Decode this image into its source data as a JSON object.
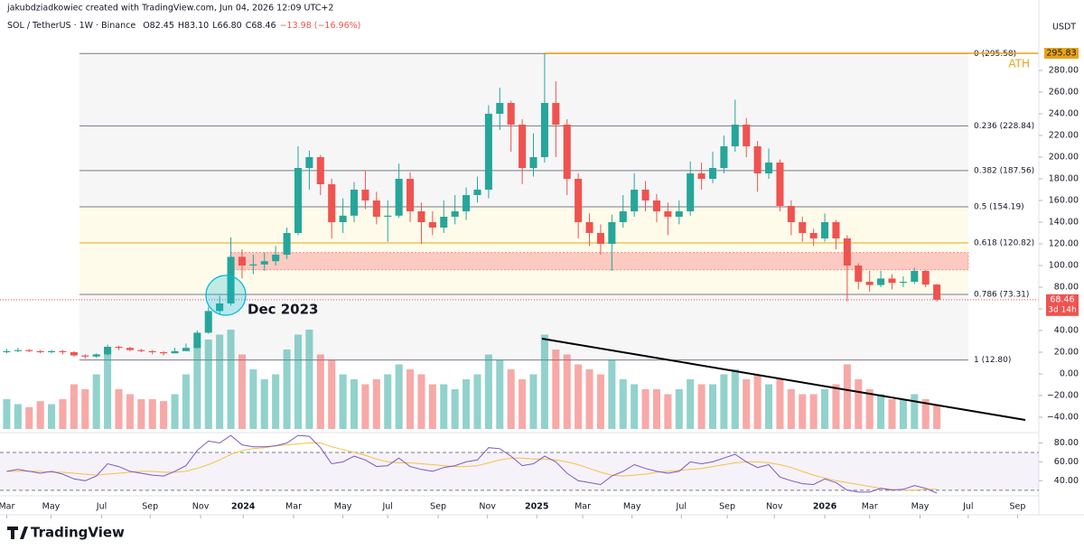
{
  "chart_data": {
    "type": "candlestick",
    "credit": "jakubdziadkowiec created with TradingView.com, Jun 04, 2026 12:09 UTC+2",
    "symbol": "SOL / TetherUS · 1W · Binance",
    "ohlc": [
      "O82.45",
      "H83.10",
      "L66.80",
      "C68.46",
      "−13.98 (−16.96%)"
    ],
    "y_axis_label": "USDT",
    "annotation": "Dec 2023",
    "ath_label": "ATH",
    "countdown": "3d 14h",
    "brand": "TradingView",
    "up_color": "#26a69a",
    "down_color": "#ef5350",
    "open": [
      20,
      21,
      22,
      21,
      20,
      21,
      20,
      17,
      16,
      18,
      25,
      24,
      22,
      21,
      20,
      19,
      21,
      24,
      38,
      58,
      65,
      108,
      100,
      101,
      104,
      110,
      130,
      190,
      200,
      175,
      140,
      146,
      170,
      160,
      145,
      146,
      180,
      150,
      140,
      135,
      145,
      150,
      165,
      170,
      240,
      250,
      230,
      190,
      200,
      250,
      230,
      180,
      140,
      130,
      120,
      140,
      150,
      170,
      160,
      150,
      145,
      150,
      185,
      180,
      190,
      210,
      230,
      210,
      185,
      195,
      155,
      140,
      130,
      125,
      140,
      125,
      100,
      85,
      82,
      88,
      84,
      85,
      95,
      82.45
    ],
    "close": [
      21,
      22,
      21,
      20,
      21,
      20,
      17,
      16,
      18,
      25,
      24,
      22,
      21,
      20,
      19,
      21,
      24,
      38,
      58,
      65,
      108,
      100,
      101,
      104,
      110,
      130,
      190,
      200,
      175,
      140,
      146,
      170,
      160,
      145,
      146,
      180,
      150,
      140,
      135,
      145,
      150,
      165,
      170,
      240,
      250,
      230,
      190,
      200,
      250,
      230,
      180,
      140,
      130,
      120,
      140,
      150,
      170,
      160,
      150,
      145,
      150,
      185,
      180,
      190,
      210,
      230,
      210,
      185,
      195,
      155,
      140,
      130,
      125,
      140,
      125,
      100,
      85,
      82,
      88,
      84,
      85,
      95,
      82.45,
      68.46
    ],
    "high": [
      23,
      24,
      23,
      22,
      22,
      22,
      21,
      18,
      19,
      27,
      26,
      25,
      23,
      22,
      21,
      24,
      28,
      40,
      62,
      72,
      126,
      115,
      110,
      112,
      118,
      135,
      210,
      206,
      202,
      180,
      162,
      177,
      188,
      168,
      160,
      194,
      186,
      158,
      150,
      160,
      165,
      172,
      182,
      248,
      264,
      252,
      235,
      222,
      295.83,
      270,
      235,
      185,
      148,
      138,
      147,
      165,
      185,
      178,
      166,
      158,
      160,
      196,
      195,
      205,
      220,
      253,
      236,
      215,
      208,
      198,
      160,
      145,
      134,
      148,
      142,
      128,
      102,
      95,
      95,
      92,
      90,
      98,
      96,
      83.1
    ],
    "low": [
      19,
      20,
      20,
      19,
      19,
      18,
      16,
      14,
      15,
      17,
      22,
      21,
      20,
      18,
      17,
      19,
      21,
      23,
      37,
      55,
      63,
      88,
      92,
      95,
      100,
      106,
      128,
      170,
      165,
      125,
      130,
      140,
      152,
      138,
      122,
      144,
      140,
      120,
      128,
      130,
      138,
      142,
      158,
      162,
      225,
      205,
      175,
      182,
      195,
      200,
      165,
      125,
      118,
      110,
      95,
      135,
      145,
      150,
      140,
      128,
      138,
      146,
      170,
      176,
      185,
      205,
      200,
      168,
      180,
      150,
      128,
      122,
      118,
      122,
      115,
      67,
      78,
      76,
      80,
      78,
      80,
      83,
      80,
      66.8
    ],
    "volume": [
      30,
      25,
      22,
      28,
      25,
      30,
      45,
      40,
      55,
      80,
      40,
      35,
      30,
      30,
      28,
      35,
      55,
      85,
      90,
      95,
      100,
      75,
      60,
      50,
      55,
      80,
      95,
      100,
      75,
      70,
      55,
      50,
      45,
      50,
      55,
      65,
      60,
      55,
      45,
      45,
      40,
      50,
      55,
      75,
      70,
      60,
      50,
      55,
      95,
      80,
      75,
      65,
      60,
      55,
      70,
      50,
      45,
      40,
      40,
      35,
      40,
      50,
      45,
      45,
      55,
      60,
      50,
      55,
      45,
      50,
      40,
      35,
      35,
      40,
      45,
      65,
      50,
      40,
      35,
      30,
      30,
      35,
      30,
      25
    ],
    "rsi": [
      50,
      52,
      50,
      48,
      50,
      47,
      42,
      40,
      45,
      58,
      55,
      50,
      48,
      46,
      45,
      50,
      56,
      72,
      82,
      80,
      88,
      78,
      76,
      76,
      77,
      80,
      88,
      87,
      75,
      58,
      60,
      66,
      62,
      55,
      56,
      64,
      55,
      52,
      50,
      54,
      56,
      60,
      62,
      75,
      74,
      66,
      56,
      58,
      66,
      60,
      48,
      40,
      38,
      36,
      45,
      50,
      57,
      53,
      50,
      48,
      50,
      60,
      58,
      60,
      64,
      68,
      60,
      54,
      57,
      44,
      40,
      37,
      36,
      42,
      38,
      30,
      28,
      28,
      32,
      30,
      31,
      35,
      32,
      27
    ],
    "rsi_ma": [
      50,
      50,
      50,
      50,
      49,
      49,
      48,
      47,
      46,
      47,
      48,
      49,
      50,
      50,
      49,
      49,
      50,
      53,
      57,
      62,
      68,
      72,
      74,
      75,
      77,
      78,
      79,
      80,
      80,
      76,
      73,
      70,
      67,
      63,
      60,
      59,
      59,
      58,
      57,
      56,
      55,
      55,
      56,
      59,
      62,
      64,
      64,
      63,
      63,
      62,
      60,
      57,
      53,
      49,
      46,
      45,
      46,
      47,
      49,
      50,
      51,
      52,
      53,
      55,
      57,
      59,
      60,
      60,
      59,
      57,
      54,
      50,
      46,
      43,
      40,
      38,
      36,
      34,
      32,
      31,
      30,
      30,
      31,
      31
    ],
    "rsi_color": "#7e57c2",
    "rsi_ma_color": "#f5c242",
    "rsi_ylim": [
      26,
      90
    ],
    "rsi_bands": [
      70,
      30
    ],
    "rsi_yticks": [
      {
        "value": 40,
        "label": "40.00"
      },
      {
        "value": 60,
        "label": "60.00"
      },
      {
        "value": 80,
        "label": "80.00"
      }
    ],
    "xlim": [
      -0.6,
      92.1
    ],
    "xticks": [
      {
        "value": 0,
        "label": "Mar"
      },
      {
        "value": 3.95,
        "label": "May"
      },
      {
        "value": 8.47,
        "label": "Jul"
      },
      {
        "value": 12.8,
        "label": "Sep"
      },
      {
        "value": 17.3,
        "label": "Nov"
      },
      {
        "value": 21.1,
        "label": "2024"
      },
      {
        "value": 25.6,
        "label": "Mar"
      },
      {
        "value": 30,
        "label": "May"
      },
      {
        "value": 34,
        "label": "Jul"
      },
      {
        "value": 38.5,
        "label": "Sep"
      },
      {
        "value": 42.9,
        "label": "Nov"
      },
      {
        "value": 47.3,
        "label": "2025"
      },
      {
        "value": 51.4,
        "label": "Mar"
      },
      {
        "value": 55.8,
        "label": "May"
      },
      {
        "value": 60.2,
        "label": "Jul"
      },
      {
        "value": 64.3,
        "label": "Sep"
      },
      {
        "value": 68.5,
        "label": "Nov"
      },
      {
        "value": 73,
        "label": "2026"
      },
      {
        "value": 77,
        "label": "Mar"
      },
      {
        "value": 81.5,
        "label": "May"
      },
      {
        "value": 85.8,
        "label": "Jul"
      },
      {
        "value": 90.2,
        "label": "Sep"
      }
    ],
    "ylim": [
      -50,
      310
    ],
    "yticks": [
      {
        "value": -40,
        "label": "−40.00"
      },
      {
        "value": -20,
        "label": "−20.00"
      },
      {
        "value": 0,
        "label": "0.00"
      },
      {
        "value": 20,
        "label": "20.00"
      },
      {
        "value": 40,
        "label": "40.00"
      },
      {
        "value": 60,
        "label": "60.00"
      },
      {
        "value": 80,
        "label": "80.00"
      },
      {
        "value": 100,
        "label": "100.00"
      },
      {
        "value": 120,
        "label": "120.00"
      },
      {
        "value": 140,
        "label": "140.00"
      },
      {
        "value": 160,
        "label": "160.00"
      },
      {
        "value": 180,
        "label": "180.00"
      },
      {
        "value": 200,
        "label": "200.00"
      },
      {
        "value": 220,
        "label": "220.00"
      },
      {
        "value": 240,
        "label": "240.00"
      },
      {
        "value": 260,
        "label": "260.00"
      },
      {
        "value": 280,
        "label": "280.00"
      }
    ],
    "fib_levels": [
      {
        "label": "0 (295.58)",
        "value": 295.58,
        "color": "#787b86",
        "fill": "#f6f6f7"
      },
      {
        "label": "0.236 (228.84)",
        "value": 228.84,
        "color": "#787b86",
        "fill": "#f6f6f7"
      },
      {
        "label": "0.382 (187.56)",
        "value": 187.56,
        "color": "#787b86",
        "fill": "#f6f6f7"
      },
      {
        "label": "0.5 (154.19)",
        "value": 154.19,
        "color": "#787b86",
        "fill": "#fffbea"
      },
      {
        "label": "0.618 (120.82)",
        "value": 120.82,
        "color": "#e8a317",
        "fill": "#fffbea"
      },
      {
        "label": "0.786 (73.31)",
        "value": 73.31,
        "color": "#787b86",
        "fill": "#f6f6f7"
      },
      {
        "label": "1 (12.80)",
        "value": 12.8,
        "color": "#787b86",
        "fill": "#ffffff"
      }
    ],
    "zone": {
      "low": 96,
      "high": 112,
      "color": "#f23645"
    },
    "ath_color": "#e8a317"
  }
}
